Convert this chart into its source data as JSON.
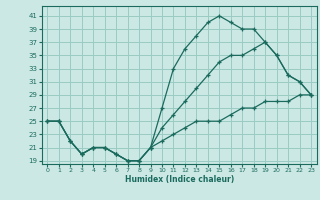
{
  "xlabel": "Humidex (Indice chaleur)",
  "bg_color": "#cce8e4",
  "grid_color": "#99ccc4",
  "line_color": "#1a6b5e",
  "line1_x": [
    0,
    1,
    2,
    3,
    4,
    5,
    6,
    7,
    8,
    9,
    10,
    11,
    12,
    13,
    14,
    15,
    16,
    17,
    18,
    19,
    20,
    21,
    22,
    23
  ],
  "line1_y": [
    25,
    25,
    22,
    20,
    21,
    21,
    20,
    19,
    19,
    21,
    27,
    33,
    36,
    38,
    40,
    41,
    40,
    39,
    39,
    37,
    35,
    32,
    31,
    29
  ],
  "line2_x": [
    0,
    1,
    2,
    3,
    4,
    5,
    6,
    7,
    8,
    9,
    10,
    11,
    12,
    13,
    14,
    15,
    16,
    17,
    18,
    19,
    20,
    21,
    22,
    23
  ],
  "line2_y": [
    25,
    25,
    22,
    20,
    21,
    21,
    20,
    19,
    19,
    21,
    24,
    26,
    28,
    30,
    32,
    34,
    35,
    35,
    36,
    37,
    35,
    32,
    31,
    29
  ],
  "line3_x": [
    0,
    1,
    2,
    3,
    4,
    5,
    6,
    7,
    8,
    9,
    10,
    11,
    12,
    13,
    14,
    15,
    16,
    17,
    18,
    19,
    20,
    21,
    22,
    23
  ],
  "line3_y": [
    25,
    25,
    22,
    20,
    21,
    21,
    20,
    19,
    19,
    21,
    22,
    23,
    24,
    25,
    25,
    25,
    26,
    27,
    27,
    28,
    28,
    28,
    29,
    29
  ],
  "yticks": [
    19,
    21,
    23,
    25,
    27,
    29,
    31,
    33,
    35,
    37,
    39,
    41
  ],
  "xticks": [
    0,
    1,
    2,
    3,
    4,
    5,
    6,
    7,
    8,
    9,
    10,
    11,
    12,
    13,
    14,
    15,
    16,
    17,
    18,
    19,
    20,
    21,
    22,
    23
  ],
  "ylim": [
    18.5,
    42.5
  ],
  "xlim": [
    -0.5,
    23.5
  ]
}
